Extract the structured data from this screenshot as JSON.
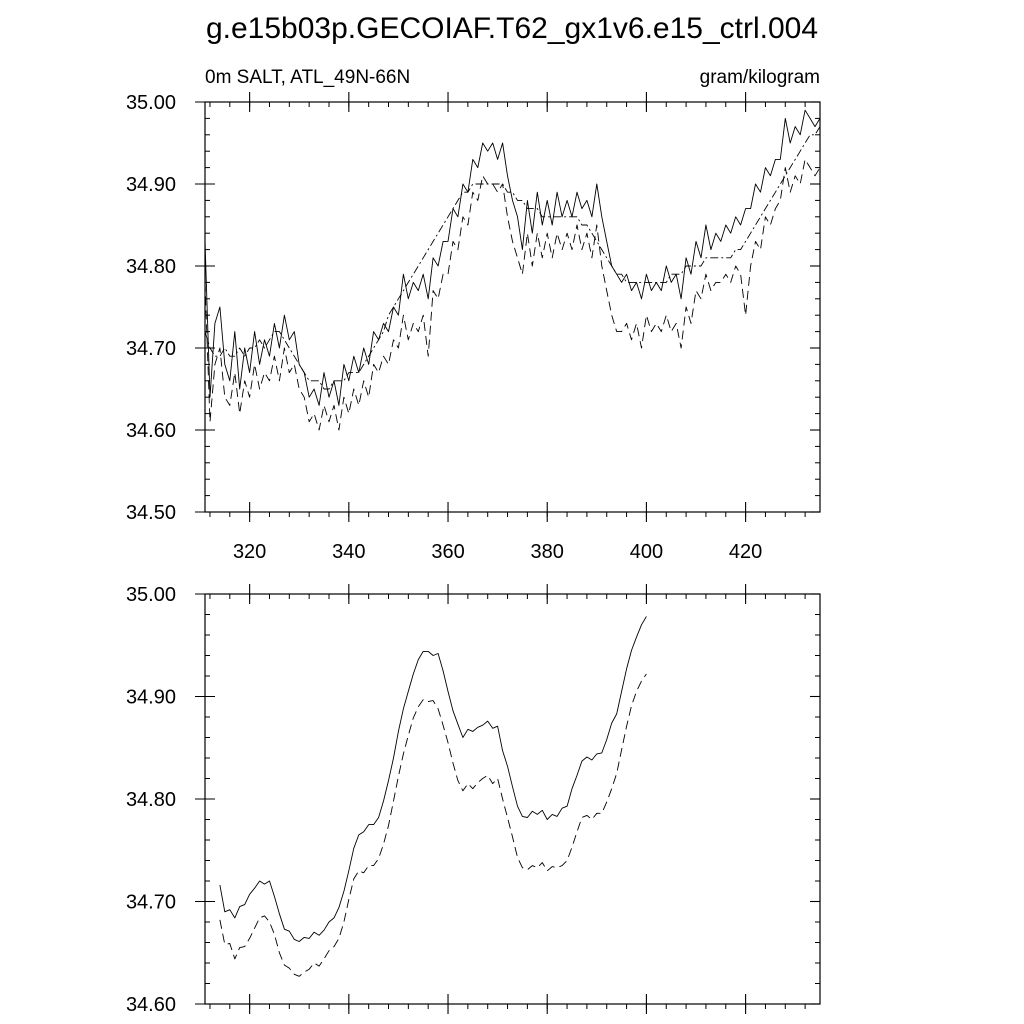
{
  "figure": {
    "title": "g.e15b03p.GECOIAF.T62_gx1v6.e15_ctrl.004"
  },
  "chart_data": [
    {
      "type": "line",
      "left_label": "0m SALT, ATL_49N-66N",
      "right_label": "gram/kilogram",
      "xlim": [
        311,
        435
      ],
      "ylim": [
        34.5,
        35.0
      ],
      "x_ticks": [
        320,
        340,
        360,
        380,
        400,
        420
      ],
      "x_tick_labels": [
        "320",
        "340",
        "360",
        "380",
        "400",
        "420"
      ],
      "y_ticks": [
        34.5,
        34.6,
        34.7,
        34.8,
        34.9,
        35.0
      ],
      "y_tick_labels": [
        "34.50",
        "34.60",
        "34.70",
        "34.80",
        "34.90",
        "35.00"
      ],
      "y_minor_step": 0.02,
      "x_minor_step": 4,
      "grid": false,
      "series": [
        {
          "style": "solid",
          "x_start": 311,
          "x_step": 1,
          "values": [
            34.83,
            34.64,
            34.73,
            34.75,
            34.68,
            34.66,
            34.72,
            34.65,
            34.7,
            34.67,
            34.72,
            34.68,
            34.71,
            34.69,
            34.73,
            34.7,
            34.74,
            34.71,
            34.72,
            34.68,
            34.67,
            34.64,
            34.65,
            34.63,
            34.67,
            34.64,
            34.66,
            34.63,
            34.68,
            34.66,
            34.69,
            34.67,
            34.7,
            34.68,
            34.72,
            34.71,
            34.73,
            34.72,
            34.75,
            34.74,
            34.79,
            34.76,
            34.78,
            34.77,
            34.79,
            34.76,
            34.81,
            34.8,
            34.83,
            34.83,
            34.87,
            34.86,
            34.9,
            34.89,
            34.93,
            34.92,
            34.95,
            34.94,
            34.95,
            34.93,
            34.95,
            34.91,
            34.88,
            34.86,
            34.82,
            34.88,
            34.84,
            34.89,
            34.85,
            34.88,
            34.85,
            34.89,
            34.86,
            34.88,
            34.86,
            34.89,
            34.87,
            34.88,
            34.86,
            34.9,
            34.86,
            34.83,
            34.8,
            34.79,
            34.78,
            34.79,
            34.77,
            34.78,
            34.76,
            34.79,
            34.77,
            34.78,
            34.77,
            34.8,
            34.78,
            34.79,
            34.76,
            34.81,
            34.79,
            34.83,
            34.81,
            34.85,
            34.82,
            34.84,
            34.83,
            34.85,
            34.84,
            34.86,
            34.85,
            34.87,
            34.87,
            34.9,
            34.89,
            34.92,
            34.91,
            34.93,
            34.93,
            34.98,
            34.95,
            34.97,
            34.96,
            34.99,
            34.98,
            34.97,
            34.98
          ]
        },
        {
          "style": "dashed",
          "x_start": 311,
          "x_step": 1,
          "values": [
            34.78,
            34.61,
            34.68,
            34.7,
            34.64,
            34.63,
            34.67,
            34.62,
            34.66,
            34.64,
            34.68,
            34.65,
            34.67,
            34.66,
            34.69,
            34.66,
            34.7,
            34.67,
            34.68,
            34.65,
            34.64,
            34.61,
            34.62,
            34.6,
            34.63,
            34.61,
            34.63,
            34.6,
            34.64,
            34.62,
            34.65,
            34.63,
            34.66,
            34.64,
            34.68,
            34.67,
            34.69,
            34.68,
            34.71,
            34.7,
            34.74,
            34.71,
            34.73,
            34.72,
            34.74,
            34.69,
            34.77,
            34.76,
            34.79,
            34.79,
            34.83,
            34.82,
            34.86,
            34.85,
            34.89,
            34.88,
            34.91,
            34.9,
            34.9,
            34.89,
            34.9,
            34.86,
            34.83,
            34.81,
            34.79,
            34.84,
            34.8,
            34.84,
            34.81,
            34.84,
            34.81,
            34.84,
            34.82,
            34.84,
            34.82,
            34.85,
            34.82,
            34.84,
            34.81,
            34.85,
            34.8,
            34.77,
            34.74,
            34.72,
            34.72,
            34.73,
            34.71,
            34.73,
            34.7,
            34.74,
            34.72,
            34.73,
            34.72,
            34.74,
            34.72,
            34.73,
            34.7,
            34.75,
            34.73,
            34.77,
            34.76,
            34.79,
            34.77,
            34.78,
            34.78,
            34.79,
            34.78,
            34.8,
            34.79,
            34.74,
            34.8,
            34.83,
            34.82,
            34.86,
            34.85,
            34.87,
            34.88,
            34.92,
            34.89,
            34.91,
            34.9,
            34.93,
            34.92,
            34.91,
            34.92
          ]
        },
        {
          "style": "dashdot",
          "x_start": 311,
          "x_step": 1,
          "values": [
            34.72,
            34.7,
            34.69,
            34.69,
            34.7,
            34.69,
            34.69,
            34.7,
            34.69,
            34.7,
            34.7,
            34.71,
            34.7,
            34.71,
            34.72,
            34.72,
            34.71,
            34.7,
            34.69,
            34.68,
            34.67,
            34.66,
            34.66,
            34.66,
            34.65,
            34.65,
            34.66,
            34.66,
            34.66,
            34.67,
            34.67,
            34.67,
            34.68,
            34.69,
            34.7,
            34.71,
            34.72,
            34.74,
            34.75,
            34.76,
            34.77,
            34.78,
            34.79,
            34.8,
            34.81,
            34.82,
            34.83,
            34.84,
            34.85,
            34.86,
            34.87,
            34.88,
            34.89,
            34.89,
            34.9,
            34.9,
            34.9,
            34.9,
            34.9,
            34.9,
            34.9,
            34.89,
            34.89,
            34.88,
            34.88,
            34.87,
            34.87,
            34.87,
            34.86,
            34.86,
            34.86,
            34.86,
            34.86,
            34.86,
            34.86,
            34.86,
            34.85,
            34.85,
            34.84,
            34.83,
            34.82,
            34.81,
            34.8,
            34.79,
            34.79,
            34.78,
            34.78,
            34.78,
            34.78,
            34.78,
            34.78,
            34.78,
            34.78,
            34.78,
            34.79,
            34.79,
            34.79,
            34.8,
            34.8,
            34.8,
            34.8,
            34.81,
            34.81,
            34.81,
            34.81,
            34.81,
            34.81,
            34.82,
            34.82,
            34.83,
            34.84,
            34.85,
            34.86,
            34.87,
            34.88,
            34.89,
            34.9,
            34.91,
            34.92,
            34.93,
            34.94,
            34.95,
            34.96,
            34.96,
            34.97
          ]
        }
      ]
    },
    {
      "type": "line",
      "xlim": [
        311,
        435
      ],
      "ylim": [
        34.6,
        35.0
      ],
      "x_ticks": [
        320,
        340,
        360,
        380,
        400,
        420
      ],
      "y_ticks": [
        34.6,
        34.7,
        34.8,
        34.9,
        35.0
      ],
      "y_tick_labels": [
        "34.60",
        "34.70",
        "34.80",
        "34.90",
        "35.00"
      ],
      "y_minor_step": 0.02,
      "x_minor_step": 4,
      "grid": false,
      "series": [
        {
          "style": "solid",
          "x_start": 314,
          "x_step": 1,
          "values": [
            34.716,
            34.69,
            34.692,
            34.684,
            34.695,
            34.697,
            34.707,
            34.713,
            34.72,
            34.717,
            34.72,
            34.705,
            34.688,
            34.673,
            34.671,
            34.663,
            34.661,
            34.665,
            34.664,
            34.67,
            34.667,
            34.672,
            34.68,
            34.684,
            34.694,
            34.71,
            34.73,
            34.752,
            34.765,
            34.768,
            34.775,
            34.775,
            34.782,
            34.798,
            34.818,
            34.84,
            34.866,
            34.888,
            34.905,
            34.922,
            34.936,
            34.944,
            34.944,
            34.94,
            34.942,
            34.925,
            34.905,
            34.886,
            34.873,
            34.86,
            34.868,
            34.866,
            34.87,
            34.872,
            34.876,
            34.869,
            34.871,
            34.847,
            34.832,
            34.812,
            34.793,
            34.783,
            34.782,
            34.788,
            34.785,
            34.789,
            34.78,
            34.785,
            34.783,
            34.791,
            34.793,
            34.81,
            34.823,
            34.837,
            34.841,
            34.838,
            34.844,
            34.845,
            34.858,
            34.874,
            34.883,
            34.905,
            34.927,
            34.945,
            34.958,
            34.97,
            34.978
          ]
        },
        {
          "style": "dashed",
          "x_start": 314,
          "x_step": 1,
          "values": [
            34.682,
            34.658,
            34.659,
            34.644,
            34.655,
            34.656,
            34.664,
            34.674,
            34.684,
            34.686,
            34.68,
            34.668,
            34.65,
            34.638,
            34.635,
            34.629,
            34.627,
            34.631,
            34.634,
            34.64,
            34.637,
            34.644,
            34.652,
            34.656,
            34.664,
            34.68,
            34.702,
            34.722,
            34.73,
            34.728,
            34.735,
            34.735,
            34.742,
            34.756,
            34.774,
            34.798,
            34.822,
            34.844,
            34.862,
            34.879,
            34.89,
            34.897,
            34.895,
            34.896,
            34.888,
            34.872,
            34.855,
            34.835,
            34.818,
            34.808,
            34.815,
            34.81,
            34.816,
            34.82,
            34.823,
            34.815,
            34.82,
            34.8,
            34.782,
            34.763,
            34.743,
            34.733,
            34.731,
            34.735,
            34.733,
            34.738,
            34.73,
            34.734,
            34.733,
            34.735,
            34.74,
            34.753,
            34.768,
            34.782,
            34.784,
            34.78,
            34.786,
            34.786,
            34.797,
            34.81,
            34.825,
            34.848,
            34.871,
            34.891,
            34.905,
            34.915,
            34.922
          ]
        }
      ]
    }
  ]
}
